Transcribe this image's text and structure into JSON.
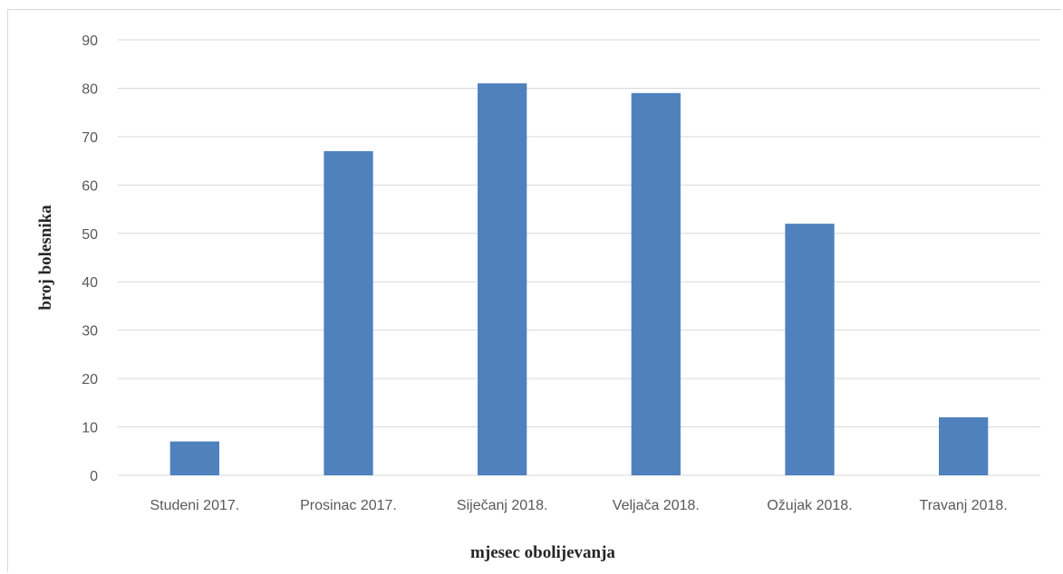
{
  "chart_data": {
    "type": "bar",
    "categories": [
      "Studeni 2017.",
      "Prosinac 2017.",
      "Siječanj 2018.",
      "Veljača 2018.",
      "Ožujak 2018.",
      "Travanj 2018."
    ],
    "values": [
      7,
      67,
      81,
      79,
      52,
      12
    ],
    "title": "",
    "xlabel": "mjesec obolijevanja",
    "ylabel": "broj bolesnika",
    "ylim": [
      0,
      90
    ],
    "yticks": [
      0,
      10,
      20,
      30,
      40,
      50,
      60,
      70,
      80,
      90
    ],
    "grid": true,
    "legend": "none",
    "bar_color": "#4f81bd",
    "grid_color": "#d9d9d9"
  }
}
